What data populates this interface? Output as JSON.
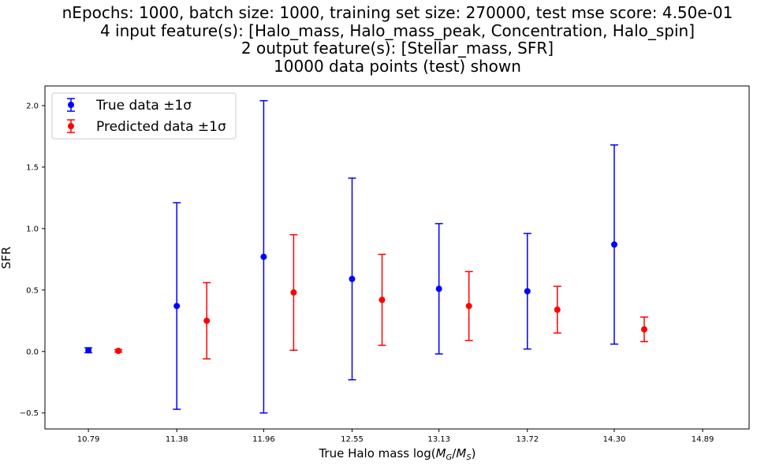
{
  "chart_data": {
    "type": "scatter",
    "title_lines": [
      "nEpochs: 1000, batch size: 1000, training set size: 270000, test mse score: 4.50e-01",
      "4 input feature(s): [Halo_mass, Halo_mass_peak, Concentration, Halo_spin]",
      "2 output feature(s): [Stellar_mass, SFR]",
      "10000 data points (test) shown"
    ],
    "xlabel": "True Halo mass log(M_G/M_S)",
    "ylabel": "SFR",
    "xlim": [
      10.5,
      15.2
    ],
    "ylim": [
      -0.63,
      2.16
    ],
    "x_ticks": [
      10.79,
      11.38,
      11.96,
      12.55,
      13.13,
      13.72,
      14.3,
      14.89
    ],
    "x_tick_labels": [
      "10.79",
      "11.38",
      "11.96",
      "12.55",
      "13.13",
      "13.72",
      "14.30",
      "14.89"
    ],
    "y_ticks": [
      -0.5,
      0.0,
      0.5,
      1.0,
      1.5,
      2.0
    ],
    "y_tick_labels": [
      "−0.5",
      "0.0",
      "0.5",
      "1.0",
      "1.5",
      "2.0"
    ],
    "grid": false,
    "legend_position": "top-left",
    "series": [
      {
        "name": "True data ±1σ",
        "color": "#0000ff",
        "x": [
          10.79,
          11.38,
          11.96,
          12.55,
          13.13,
          13.72,
          14.3
        ],
        "y": [
          0.01,
          0.37,
          0.77,
          0.59,
          0.51,
          0.49,
          0.87
        ],
        "err": [
          0.02,
          0.84,
          1.27,
          0.82,
          0.53,
          0.47,
          0.81
        ]
      },
      {
        "name": "Predicted data ±1σ",
        "color": "#ff0000",
        "x": [
          10.99,
          11.58,
          12.16,
          12.75,
          13.33,
          13.92,
          14.5
        ],
        "y": [
          0.005,
          0.25,
          0.48,
          0.42,
          0.37,
          0.34,
          0.18
        ],
        "err": [
          0.01,
          0.31,
          0.47,
          0.37,
          0.28,
          0.19,
          0.1
        ]
      }
    ]
  }
}
